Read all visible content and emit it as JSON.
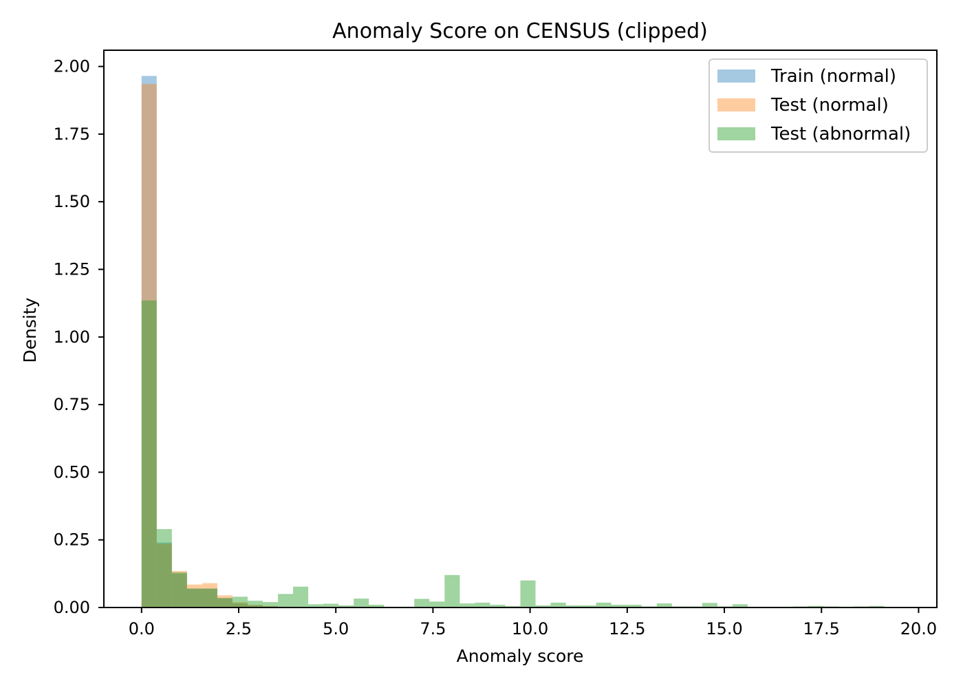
{
  "chart_data": {
    "type": "bar",
    "title": "Anomaly Score on CENSUS (clipped)",
    "xlabel": "Anomaly score",
    "ylabel": "Density",
    "xlim": [
      -0.97,
      20.47
    ],
    "ylim": [
      0,
      2.06
    ],
    "xticks": [
      0,
      2.5,
      5,
      7.5,
      10,
      12.5,
      15,
      17.5,
      20
    ],
    "xtick_labels": [
      "0.0",
      "2.5",
      "5.0",
      "7.5",
      "10.0",
      "12.5",
      "15.0",
      "17.5",
      "20.0"
    ],
    "yticks": [
      0,
      0.25,
      0.5,
      0.75,
      1.0,
      1.25,
      1.5,
      1.75,
      2.0
    ],
    "ytick_labels": [
      "0.00",
      "0.25",
      "0.50",
      "0.75",
      "1.00",
      "1.25",
      "1.50",
      "1.75",
      "2.00"
    ],
    "bin_start": 0.0,
    "bin_width": 0.39,
    "grid": false,
    "legend_position": "upper right",
    "series": [
      {
        "name": "Train (normal)",
        "color": "#1f77b4",
        "alpha": 0.4,
        "values": [
          1.965,
          0.24,
          0.125,
          0.07,
          0.07,
          0.035,
          0.015,
          0.008,
          0.004,
          0.002
        ]
      },
      {
        "name": "Test (normal)",
        "color": "#ff7f0e",
        "alpha": 0.4,
        "values": [
          1.935,
          0.235,
          0.135,
          0.085,
          0.09,
          0.045,
          0.02,
          0.01,
          0.005,
          0.003
        ]
      },
      {
        "name": "Test (abnormal)",
        "color": "#2ca02c",
        "alpha": 0.45,
        "values": [
          1.135,
          0.29,
          0.13,
          0.07,
          0.07,
          0.035,
          0.04,
          0.025,
          0.02,
          0.05,
          0.077,
          0.012,
          0.014,
          0.008,
          0.033,
          0.01,
          0.003,
          0.003,
          0.032,
          0.022,
          0.12,
          0.015,
          0.018,
          0.01,
          0.005,
          0.1,
          0.008,
          0.018,
          0.008,
          0.008,
          0.018,
          0.01,
          0.01,
          0.004,
          0.015,
          0.004,
          0.004,
          0.017,
          0.004,
          0.012,
          0.003,
          0.003,
          0.003,
          0.004,
          0.006,
          0.004,
          0.003,
          0.004,
          0.006,
          0.002
        ]
      }
    ]
  }
}
